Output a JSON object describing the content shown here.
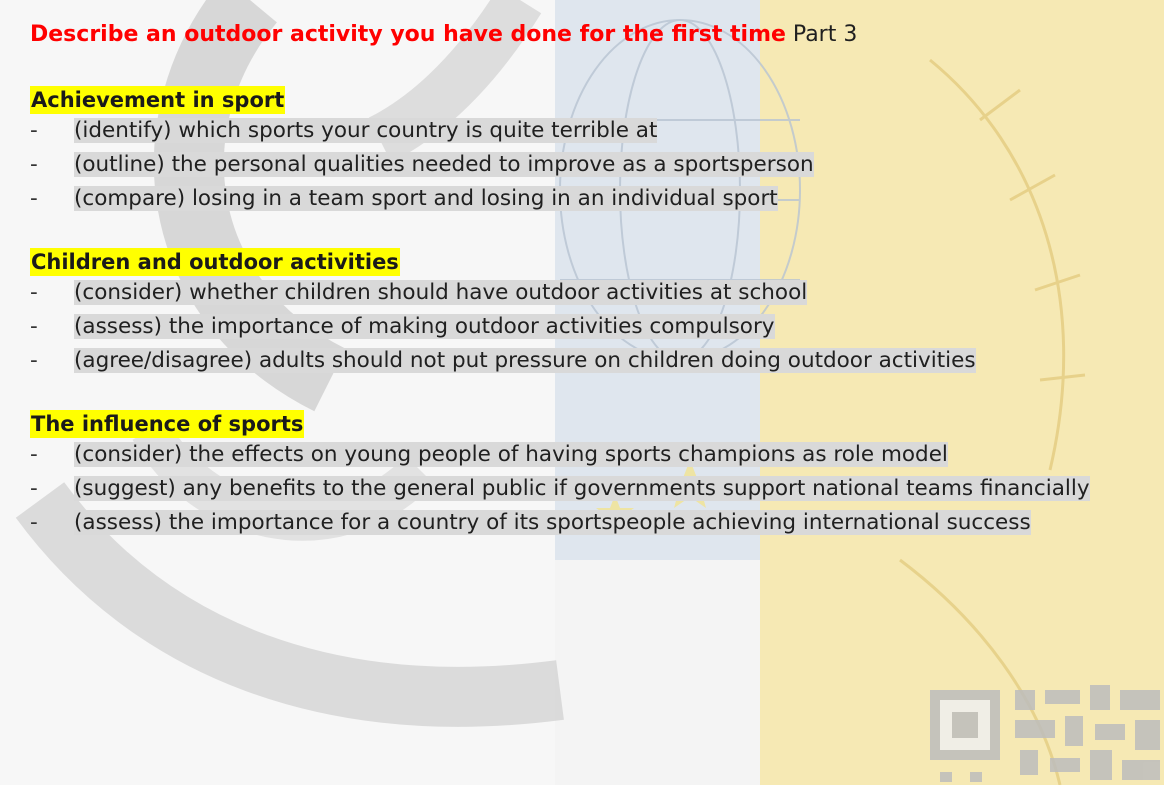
{
  "title": {
    "main": "Describe an outdoor activity you have done for the first time",
    "part": "Part 3"
  },
  "sections": [
    {
      "heading": "Achievement in sport",
      "items": [
        "(identify) which sports your country is quite terrible at",
        "(outline) the personal qualities needed to improve as a sportsperson",
        "(compare) losing in a team sport and losing in an individual sport"
      ]
    },
    {
      "heading": "Children and outdoor activities",
      "items": [
        "(consider) whether children should have outdoor activities at school",
        "(assess) the importance of making outdoor activities compulsory",
        "(agree/disagree) adults should not put pressure on children doing outdoor activities"
      ]
    },
    {
      "heading": "The influence of sports",
      "items": [
        "(consider) the effects on young people of having sports champions as role model",
        "(suggest) any benefits to the general public if governments support national teams financially",
        "(assess) the importance for a country of its sportspeople achieving international success"
      ]
    }
  ],
  "bullet": "-",
  "colors": {
    "title": "#ff0000",
    "heading_highlight": "#ffff00",
    "item_highlight": "#d9d9d9"
  }
}
